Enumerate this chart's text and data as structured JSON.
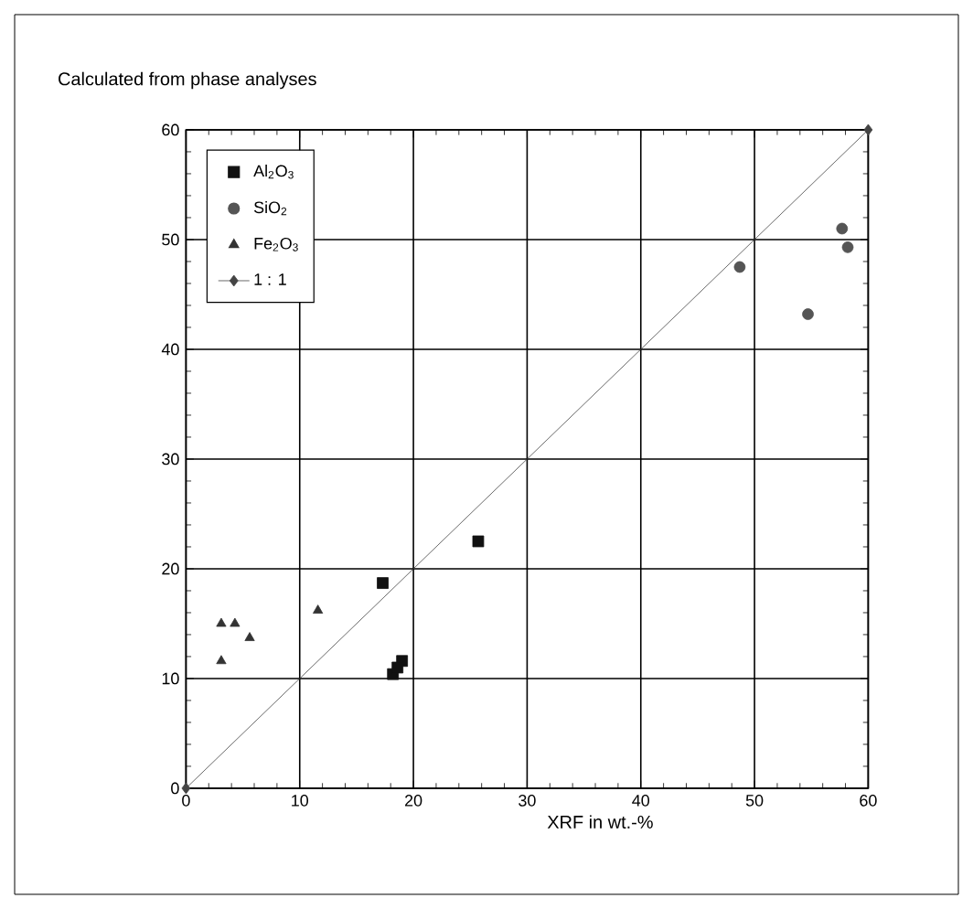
{
  "chart_data": {
    "type": "scatter",
    "title": "Calculated from phase analyses",
    "xlabel": "XRF in wt.-%",
    "xlim": [
      0,
      60
    ],
    "ylim": [
      0,
      60
    ],
    "xticks": [
      0,
      10,
      20,
      30,
      40,
      50,
      60
    ],
    "yticks": [
      0,
      10,
      20,
      30,
      40,
      50,
      60
    ],
    "grid": true,
    "legend": "top left",
    "series": [
      {
        "name": "Al$_{2}$O$_{3}$",
        "color": "#111111",
        "marker": "square",
        "x": [
          17.3,
          25.7,
          19.0,
          18.2,
          18.6
        ],
        "values": [
          18.7,
          22.5,
          11.6,
          10.4,
          11.0
        ]
      },
      {
        "name": "SiO$_{2}$",
        "color": "#555555",
        "marker": "circle",
        "x": [
          48.7,
          54.7,
          57.7,
          58.2
        ],
        "values": [
          47.5,
          43.2,
          51.0,
          49.3
        ]
      },
      {
        "name": "Fe$_{2}$O$_{3}$",
        "color": "#333333",
        "marker": "triangle",
        "x": [
          3.1,
          4.3,
          5.6,
          3.1,
          11.6
        ],
        "values": [
          15.0,
          15.0,
          13.7,
          11.6,
          16.2
        ]
      },
      {
        "name": "1 : 1",
        "type": "line",
        "color": "#444444",
        "marker": "diamond",
        "line_style": "solid",
        "x": [
          0,
          60
        ],
        "values": [
          0,
          60
        ]
      }
    ]
  }
}
